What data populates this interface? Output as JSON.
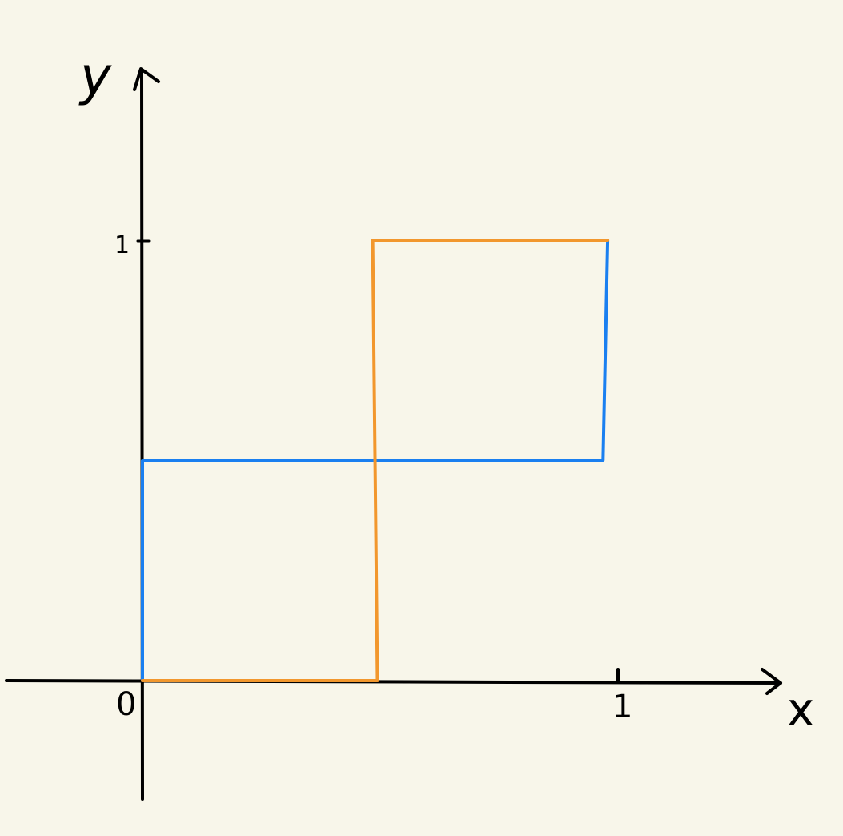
{
  "chart_data": {
    "type": "line",
    "title": "",
    "xlabel": "x",
    "ylabel": "y",
    "xlim": [
      -0.3,
      1.35
    ],
    "ylim": [
      -0.27,
      1.45
    ],
    "x_ticks": [
      {
        "value": 0,
        "label": "0"
      },
      {
        "value": 1,
        "label": "1"
      }
    ],
    "y_ticks": [
      {
        "value": 1,
        "label": "1"
      }
    ],
    "grid": false,
    "legend": "none",
    "series": [
      {
        "color": "#1a7ff0",
        "points": [
          [
            0,
            0
          ],
          [
            0,
            0.5
          ],
          [
            0.98,
            0.5
          ],
          [
            0.99,
            1.0
          ]
        ]
      },
      {
        "color": "#f2972d",
        "points": [
          [
            0,
            0
          ],
          [
            0.5,
            0
          ],
          [
            0.49,
            1.0
          ],
          [
            0.99,
            1.0
          ]
        ]
      }
    ]
  },
  "style": {
    "background": "#f8f6ea",
    "axis_color": "#000000"
  }
}
